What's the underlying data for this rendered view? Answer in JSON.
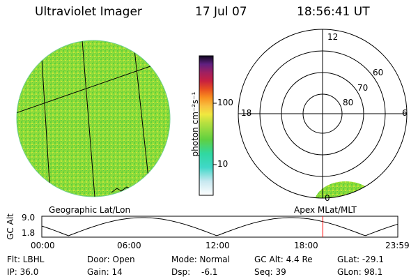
{
  "header": {
    "instrument": "Ultraviolet Imager",
    "date": "17 Jul 07",
    "time": "18:56:41 UT"
  },
  "colorbar": {
    "unit_label": "photon cm⁻²s⁻¹",
    "ticks": [
      "100",
      "10"
    ],
    "scale": "log"
  },
  "polar_plot": {
    "mlt_labels": {
      "top": "12",
      "left": "18",
      "right": "6",
      "bottom": "0"
    },
    "lat_labels": [
      "60",
      "70",
      "80"
    ]
  },
  "map_titles": {
    "left": "Geographic Lat/Lon",
    "right": "Apex MLat/MLT"
  },
  "altitude_plot": {
    "ylabel": "GC Alt",
    "yticks": [
      "9.0",
      "1.8"
    ],
    "xticks": [
      "00:00",
      "06:00",
      "12:00",
      "18:00",
      "23:59"
    ],
    "current_time_marker": "18:56",
    "marker_color": "#ff0000"
  },
  "footer": {
    "flt": "Flt: LBHL",
    "ip": "IP: 36.0",
    "door": "Door: Open",
    "gain": "Gain: 14",
    "mode": "Mode: Normal",
    "dsp_label": "Dsp:",
    "dsp_value": "-6.1",
    "gc_alt": "GC Alt: 4.4 Re",
    "seq": "Seq: 39",
    "glat": "GLat: -29.1",
    "glon": "GLon: 98.1"
  },
  "colors": {
    "image_fill": "#8fdc3a",
    "speckle_green": "#5fcf3a",
    "speckle_yellow": "#c8e63a"
  }
}
